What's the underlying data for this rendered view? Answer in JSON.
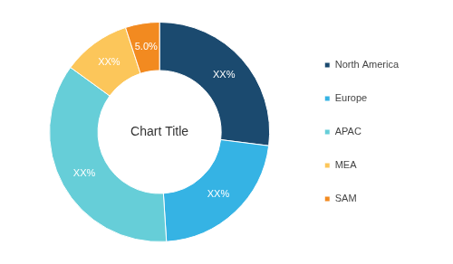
{
  "chart_data": {
    "type": "doughnut",
    "title": "Chart Title",
    "categories": [
      "North America",
      "Europe",
      "APAC",
      "MEA",
      "SAM"
    ],
    "values": [
      27,
      22,
      36,
      10,
      5.0
    ],
    "value_labels": [
      "XX%",
      "XX%",
      "XX%",
      "XX%",
      "5.0%"
    ],
    "colors": [
      "#1b4a6f",
      "#35b3e4",
      "#66ced8",
      "#fcc65a",
      "#f28a20"
    ],
    "data_labels": true,
    "legend": "right"
  }
}
